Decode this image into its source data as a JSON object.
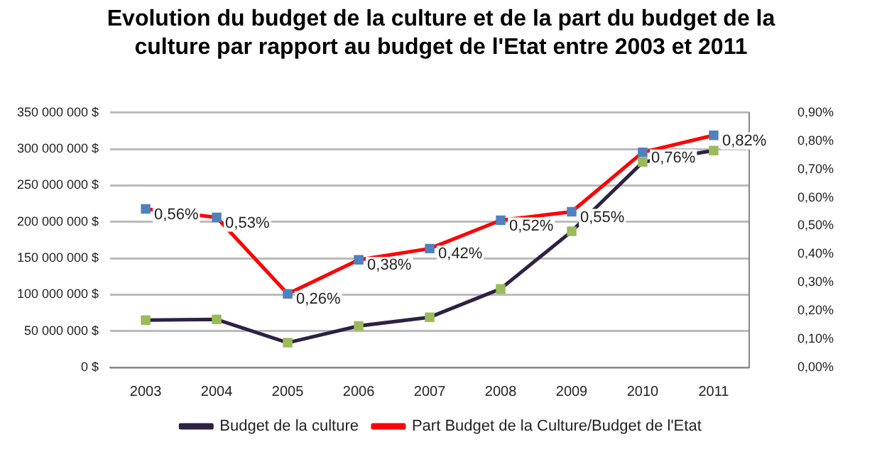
{
  "chart_data": {
    "type": "line",
    "title": "Evolution du budget de la culture et de la part du budget de la culture par rapport au budget de l'Etat entre 2003 et 2011",
    "categories": [
      "2003",
      "2004",
      "2005",
      "2006",
      "2007",
      "2008",
      "2009",
      "2010",
      "2011"
    ],
    "series": [
      {
        "name": "Budget de la culture",
        "color": "#2e2142",
        "colors": [
          "#9bbb59",
          "#9bbb59",
          "#9bbb59",
          "#9bbb59",
          "#9bbb59",
          "#9bbb59",
          "#9bbb59",
          "#9bbb59",
          "#9bbb59"
        ],
        "values": [
          65000000,
          66000000,
          34000000,
          57000000,
          69000000,
          108000000,
          187000000,
          282000000,
          298000000
        ]
      },
      {
        "name": "Part Budget de la Culture/Budget de l'Etat",
        "color": "#ff0000",
        "colors": [
          "#4f81bd",
          "#4f81bd",
          "#4f81bd",
          "#4f81bd",
          "#4f81bd",
          "#4f81bd",
          "#4f81bd",
          "#4f81bd",
          "#4f81bd"
        ],
        "axis": "y2",
        "values": [
          0.56,
          0.53,
          0.26,
          0.38,
          0.42,
          0.52,
          0.55,
          0.76,
          0.82
        ],
        "value_labels": [
          "0,56%",
          "0,53%",
          "0,26%",
          "0,38%",
          "0,42%",
          "0,52%",
          "0,55%",
          "0,76%",
          "0,82%"
        ]
      }
    ],
    "ylim": [
      0,
      350000000
    ],
    "yticks": [
      {
        "value": 0,
        "label": "0 $"
      },
      {
        "value": 50000000,
        "label": "50 000 000 $"
      },
      {
        "value": 100000000,
        "label": "100 000 000 $"
      },
      {
        "value": 150000000,
        "label": "150 000 000 $"
      },
      {
        "value": 200000000,
        "label": "200 000 000 $"
      },
      {
        "value": 250000000,
        "label": "250 000 000 $"
      },
      {
        "value": 300000000,
        "label": "300 000 000 $"
      },
      {
        "value": 350000000,
        "label": "350 000 000 $"
      }
    ],
    "y2lim": [
      0,
      0.9
    ],
    "y2ticks": [
      {
        "value": 0,
        "label": "0,00%"
      },
      {
        "value": 0.1,
        "label": "0,10%"
      },
      {
        "value": 0.2,
        "label": "0,20%"
      },
      {
        "value": 0.3,
        "label": "0,30%"
      },
      {
        "value": 0.4,
        "label": "0,40%"
      },
      {
        "value": 0.5,
        "label": "0,50%"
      },
      {
        "value": 0.6,
        "label": "0,60%"
      },
      {
        "value": 0.7,
        "label": "0,70%"
      },
      {
        "value": 0.8,
        "label": "0,80%"
      },
      {
        "value": 0.9,
        "label": "0,90%"
      }
    ],
    "grid": "y",
    "legend": "bottom",
    "marker": "square",
    "line_style": "solid"
  }
}
